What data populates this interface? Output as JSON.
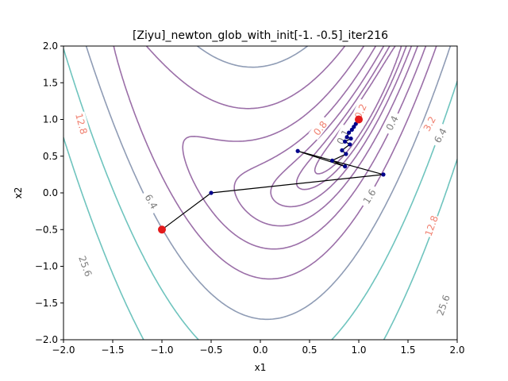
{
  "chart_data": {
    "type": "line",
    "title": "[Ziyu]_newton_glob_with_init[-1.  -0.5]_iter216",
    "xlabel": "x1",
    "ylabel": "x2",
    "xlim": [
      -2.0,
      2.0
    ],
    "ylim": [
      -2.0,
      2.0
    ],
    "grid": false,
    "x_ticks": [
      "−2.0",
      "−1.5",
      "−1.0",
      "−0.5",
      "0.0",
      "0.5",
      "1.0",
      "1.5",
      "2.0"
    ],
    "y_ticks": [
      "−2.0",
      "−1.5",
      "−1.0",
      "−0.5",
      "0.0",
      "0.5",
      "1.0",
      "1.5",
      "2.0"
    ],
    "contour_levels": [
      0.1,
      0.2,
      0.4,
      0.8,
      1.6,
      3.2,
      6.4,
      12.8,
      25.6
    ],
    "contour_labels": [
      {
        "text": "0.1",
        "x": 0.84,
        "y": 0.76,
        "angle": -62,
        "color": "#7f7f7f"
      },
      {
        "text": "0.2",
        "x": 1.02,
        "y": 1.11,
        "angle": -65,
        "color": "#f08070"
      },
      {
        "text": "0.4",
        "x": 1.34,
        "y": 0.95,
        "angle": -62,
        "color": "#7f7f7f"
      },
      {
        "text": "0.8",
        "x": 0.61,
        "y": 0.88,
        "angle": -52,
        "color": "#f08070"
      },
      {
        "text": "1.6",
        "x": 1.11,
        "y": -0.05,
        "angle": -58,
        "color": "#7f7f7f"
      },
      {
        "text": "3.2",
        "x": 1.72,
        "y": 0.94,
        "angle": -62,
        "color": "#f08070"
      },
      {
        "text": "6.4",
        "x": 1.83,
        "y": 0.78,
        "angle": -60,
        "color": "#7f7f7f"
      },
      {
        "text": "12.8",
        "x": 1.74,
        "y": -0.45,
        "angle": -70,
        "color": "#f08070"
      },
      {
        "text": "25.6",
        "x": 1.86,
        "y": -1.53,
        "angle": -70,
        "color": "#7f7f7f"
      },
      {
        "text": "12.8",
        "x": -1.82,
        "y": 0.94,
        "angle": 75,
        "color": "#f08070"
      },
      {
        "text": "6.4",
        "x": -1.11,
        "y": -0.12,
        "angle": 60,
        "color": "#7f7f7f"
      },
      {
        "text": "25.6",
        "x": -1.78,
        "y": -1.0,
        "angle": 70,
        "color": "#7f7f7f"
      }
    ],
    "series": [
      {
        "type": "path",
        "x": [
          -1.0,
          -0.5,
          1.25,
          0.38,
          0.86,
          0.73,
          0.87,
          0.83,
          0.91,
          0.86,
          0.92,
          0.88,
          0.9,
          0.93,
          0.95,
          0.97,
          1.0
        ],
        "y": [
          -0.5,
          0.0,
          0.25,
          0.57,
          0.36,
          0.44,
          0.53,
          0.58,
          0.66,
          0.7,
          0.74,
          0.76,
          0.82,
          0.86,
          0.9,
          0.94,
          1.0
        ]
      }
    ],
    "start": {
      "x": -1.0,
      "y": -0.5
    },
    "end": {
      "x": 1.0,
      "y": 1.0
    },
    "colors": {
      "path": "#000000",
      "points": "#00008b",
      "endpoints": "#e31a1c"
    }
  }
}
